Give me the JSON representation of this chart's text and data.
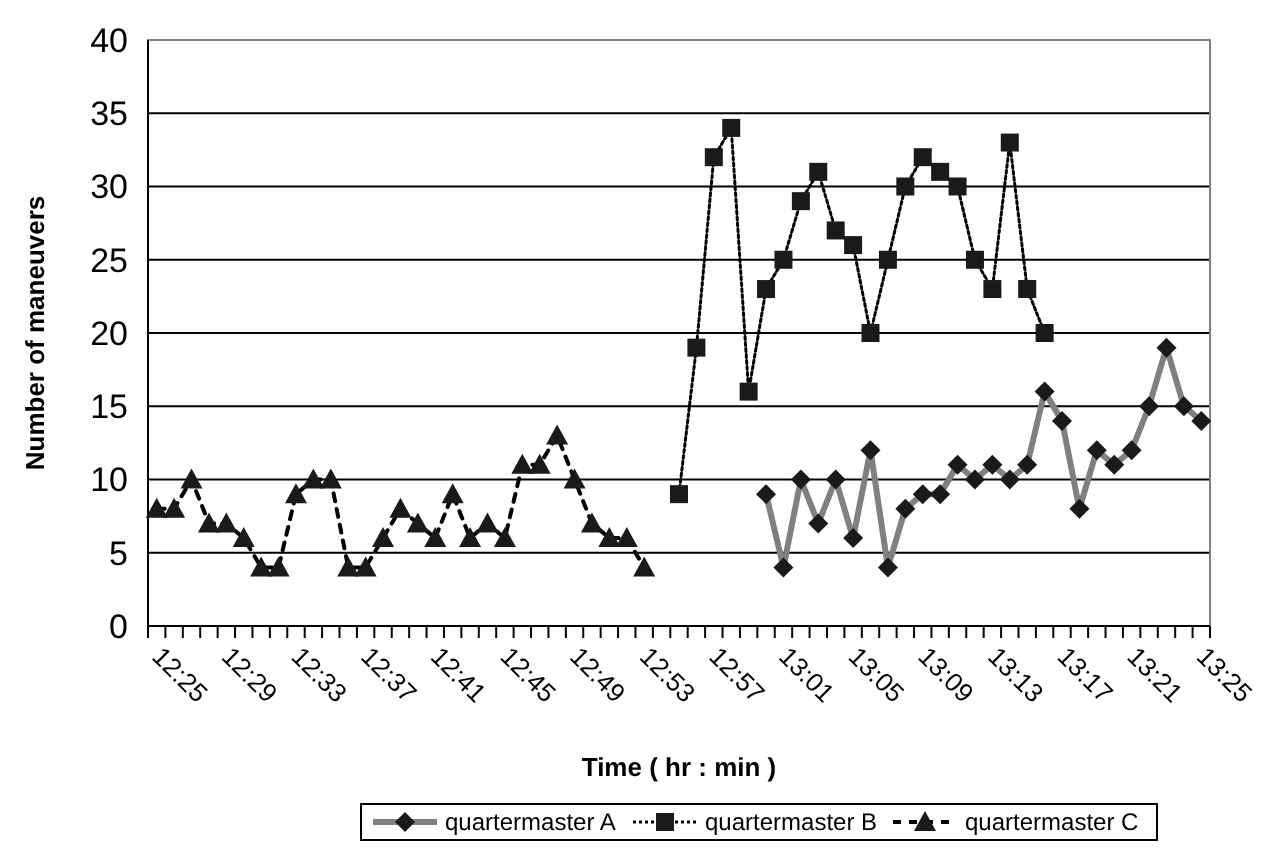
{
  "chart_data": {
    "type": "line",
    "xlabel": "Time ( hr : min )",
    "ylabel": "Number of maneuvers",
    "categories": [
      "12:25",
      null,
      null,
      null,
      "12:29",
      null,
      null,
      null,
      "12:33",
      null,
      null,
      null,
      "12:37",
      null,
      null,
      null,
      "12:41",
      null,
      null,
      null,
      "12:45",
      null,
      null,
      null,
      "12:49",
      null,
      null,
      null,
      "12:53",
      null,
      null,
      null,
      "12:57",
      null,
      null,
      null,
      "13:01",
      null,
      null,
      null,
      "13:05",
      null,
      null,
      null,
      "13:09",
      null,
      null,
      null,
      "13:13",
      null,
      null,
      null,
      "13:17",
      null,
      null,
      null,
      "13:21",
      null,
      null,
      null,
      "13:25"
    ],
    "ylim": [
      0,
      40
    ],
    "yticks": [
      0,
      5,
      10,
      15,
      20,
      25,
      30,
      35,
      40
    ],
    "grid": "y",
    "legend": "bottom",
    "series": [
      {
        "name": "quartermaster A",
        "color": "#808080",
        "marker": "diamond",
        "line_style": "solid",
        "values": [
          null,
          null,
          null,
          null,
          null,
          null,
          null,
          null,
          null,
          null,
          null,
          null,
          null,
          null,
          null,
          null,
          null,
          null,
          null,
          null,
          null,
          null,
          null,
          null,
          null,
          null,
          null,
          null,
          null,
          null,
          null,
          null,
          null,
          null,
          null,
          9,
          4,
          10,
          7,
          10,
          6,
          12,
          4,
          8,
          9,
          9,
          11,
          10,
          11,
          10,
          11,
          16,
          14,
          8,
          12,
          11,
          12,
          15,
          19,
          15,
          14
        ]
      },
      {
        "name": "quartermaster B",
        "color": "#000000",
        "marker": "square",
        "line_style": "dotted",
        "values": [
          null,
          null,
          null,
          null,
          null,
          null,
          null,
          null,
          null,
          null,
          null,
          null,
          null,
          null,
          null,
          null,
          null,
          null,
          null,
          null,
          null,
          null,
          null,
          null,
          null,
          null,
          null,
          null,
          null,
          null,
          9,
          19,
          32,
          34,
          16,
          23,
          25,
          29,
          31,
          27,
          26,
          20,
          25,
          30,
          32,
          31,
          30,
          25,
          23,
          33,
          23,
          20,
          null,
          null,
          null,
          null,
          null,
          null,
          null,
          null,
          null
        ]
      },
      {
        "name": "quartermaster C",
        "color": "#000000",
        "marker": "triangle",
        "line_style": "dashed",
        "values": [
          8,
          8,
          10,
          7,
          7,
          6,
          4,
          4,
          9,
          10,
          10,
          4,
          4,
          6,
          8,
          7,
          6,
          9,
          6,
          7,
          6,
          11,
          11,
          13,
          10,
          7,
          6,
          6,
          4,
          null,
          null,
          null,
          null,
          null,
          null,
          null,
          null,
          null,
          null,
          null,
          null,
          null,
          null,
          null,
          null,
          null,
          null,
          null,
          null,
          null,
          null,
          null,
          null,
          null,
          null,
          null,
          null,
          null,
          null,
          null,
          null
        ]
      }
    ]
  }
}
